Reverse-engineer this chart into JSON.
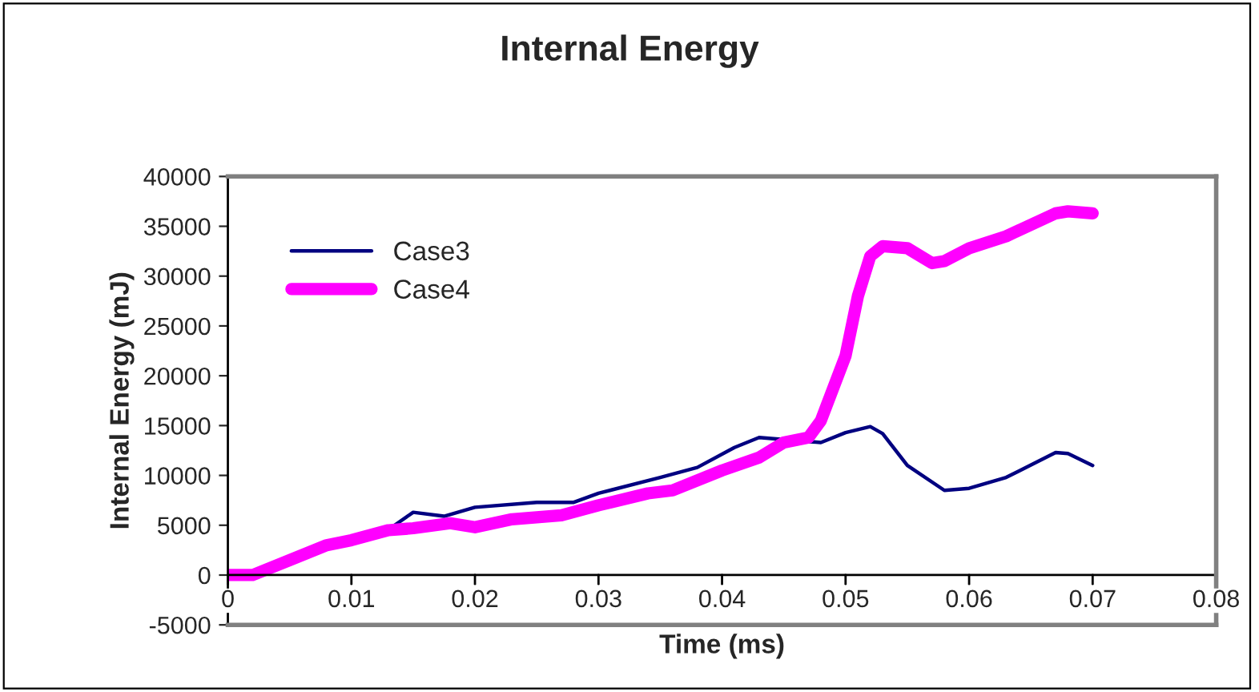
{
  "chart_data": {
    "type": "line",
    "title": "Internal Energy",
    "xlabel": "Time (ms)",
    "ylabel": "Internal Energy (mJ)",
    "xlim": [
      0,
      0.08
    ],
    "xticks": [
      0,
      0.01,
      0.02,
      0.03,
      0.04,
      0.05,
      0.06,
      0.07,
      0.08
    ],
    "ylim": [
      -5000,
      40000
    ],
    "yticks": [
      -5000,
      0,
      5000,
      10000,
      15000,
      20000,
      25000,
      30000,
      35000,
      40000
    ],
    "grid": false,
    "legend": "top left",
    "marker": "none",
    "line_style": "solid",
    "series": [
      {
        "name": "Case3",
        "color": "#000080",
        "x": [
          0.0135,
          0.015,
          0.0175,
          0.02,
          0.025,
          0.028,
          0.03,
          0.035,
          0.038,
          0.041,
          0.043,
          0.045,
          0.048,
          0.05,
          0.052,
          0.053,
          0.055,
          0.058,
          0.06,
          0.063,
          0.067,
          0.068,
          0.07
        ],
        "values": [
          5000,
          6300,
          5900,
          6800,
          7300,
          7300,
          8200,
          9800,
          10800,
          12800,
          13800,
          null,
          13300,
          14300,
          14900,
          14200,
          11000,
          8500,
          8700,
          9800,
          12300,
          12200,
          11000
        ]
      },
      {
        "name": "Case4",
        "color": "#ff00ff",
        "x": [
          0,
          0.002,
          0.005,
          0.008,
          0.01,
          0.013,
          0.015,
          0.018,
          0.02,
          0.023,
          0.027,
          0.03,
          0.034,
          0.036,
          0.04,
          0.043,
          0.045,
          0.047,
          0.048,
          0.05,
          0.051,
          0.052,
          0.053,
          0.055,
          0.057,
          0.058,
          0.06,
          0.063,
          0.067,
          0.068,
          0.07
        ],
        "values": [
          0,
          0,
          1500,
          3000,
          3500,
          4500,
          4700,
          5200,
          4800,
          5600,
          6000,
          7000,
          8200,
          8500,
          10500,
          11800,
          13300,
          13800,
          15500,
          22000,
          28000,
          32000,
          33000,
          32800,
          31300,
          31500,
          32800,
          34000,
          36300,
          36500,
          36300
        ]
      }
    ]
  }
}
